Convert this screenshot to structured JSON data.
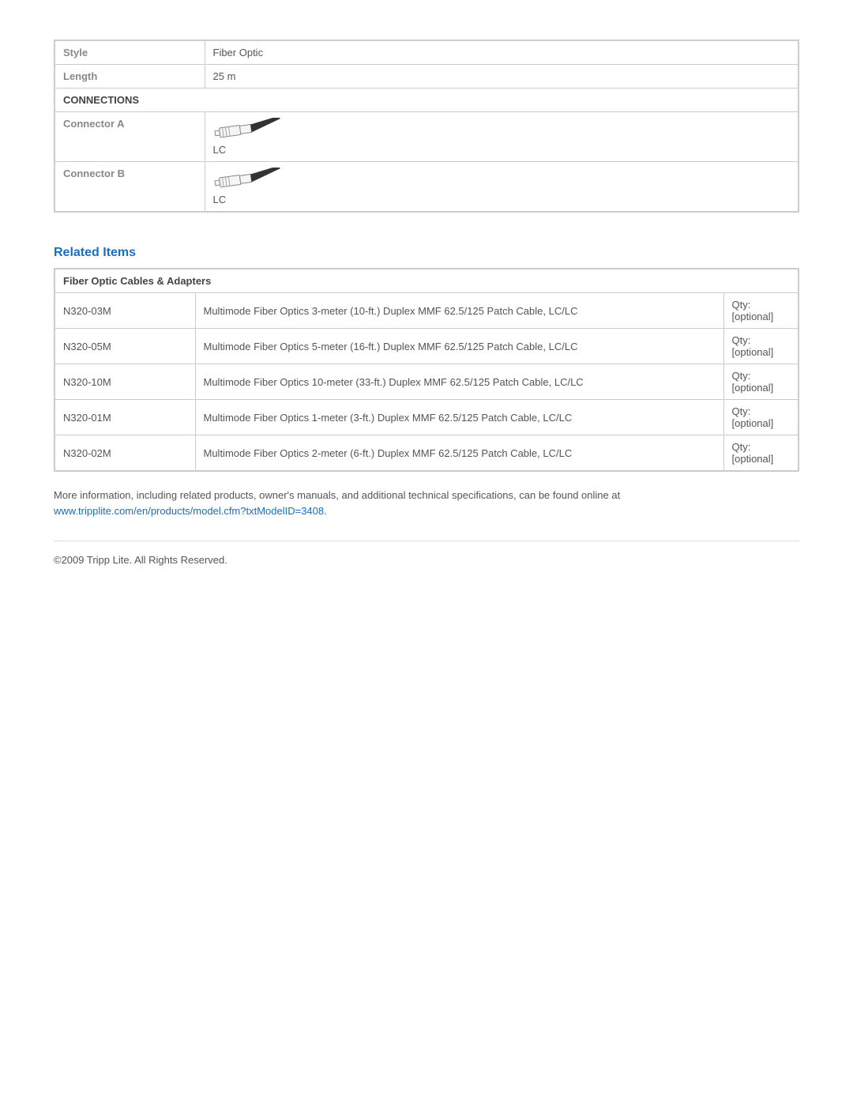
{
  "spec": {
    "style_label": "Style",
    "style_value": "Fiber Optic",
    "length_label": "Length",
    "length_value": "25 m",
    "connections_header": "CONNECTIONS",
    "connectorA_label": "Connector A",
    "connectorA_value": "LC",
    "connectorB_label": "Connector B",
    "connectorB_value": "LC",
    "connector_icon": {
      "width": 88,
      "height": 28,
      "stroke": "#888888",
      "fill": "#f5f5f5",
      "dark_fill": "#333333"
    }
  },
  "related": {
    "heading": "Related Items",
    "group_header": "Fiber Optic Cables & Adapters",
    "rows": [
      {
        "sku": "N320-03M",
        "desc": "Multimode Fiber Optics 3-meter (10-ft.) Duplex MMF 62.5/125 Patch Cable, LC/LC",
        "qty": "Qty: [optional]"
      },
      {
        "sku": "N320-05M",
        "desc": "Multimode Fiber Optics 5-meter (16-ft.) Duplex MMF 62.5/125 Patch Cable, LC/LC",
        "qty": "Qty: [optional]"
      },
      {
        "sku": "N320-10M",
        "desc": "Multimode Fiber Optics 10-meter (33-ft.) Duplex MMF 62.5/125 Patch Cable, LC/LC",
        "qty": "Qty: [optional]"
      },
      {
        "sku": "N320-01M",
        "desc": "Multimode Fiber Optics 1-meter (3-ft.) Duplex MMF 62.5/125 Patch Cable, LC/LC",
        "qty": "Qty: [optional]"
      },
      {
        "sku": "N320-02M",
        "desc": "Multimode Fiber Optics 2-meter (6-ft.) Duplex MMF 62.5/125 Patch Cable, LC/LC",
        "qty": "Qty: [optional]"
      }
    ]
  },
  "more_info": {
    "text": "More information, including related products, owner's manuals, and additional technical specifications, can be found online at ",
    "link_text": "www.tripplite.com/en/products/model.cfm?txtModelID=3408",
    "suffix": "."
  },
  "copyright": "©2009 Tripp Lite.  All Rights Reserved."
}
